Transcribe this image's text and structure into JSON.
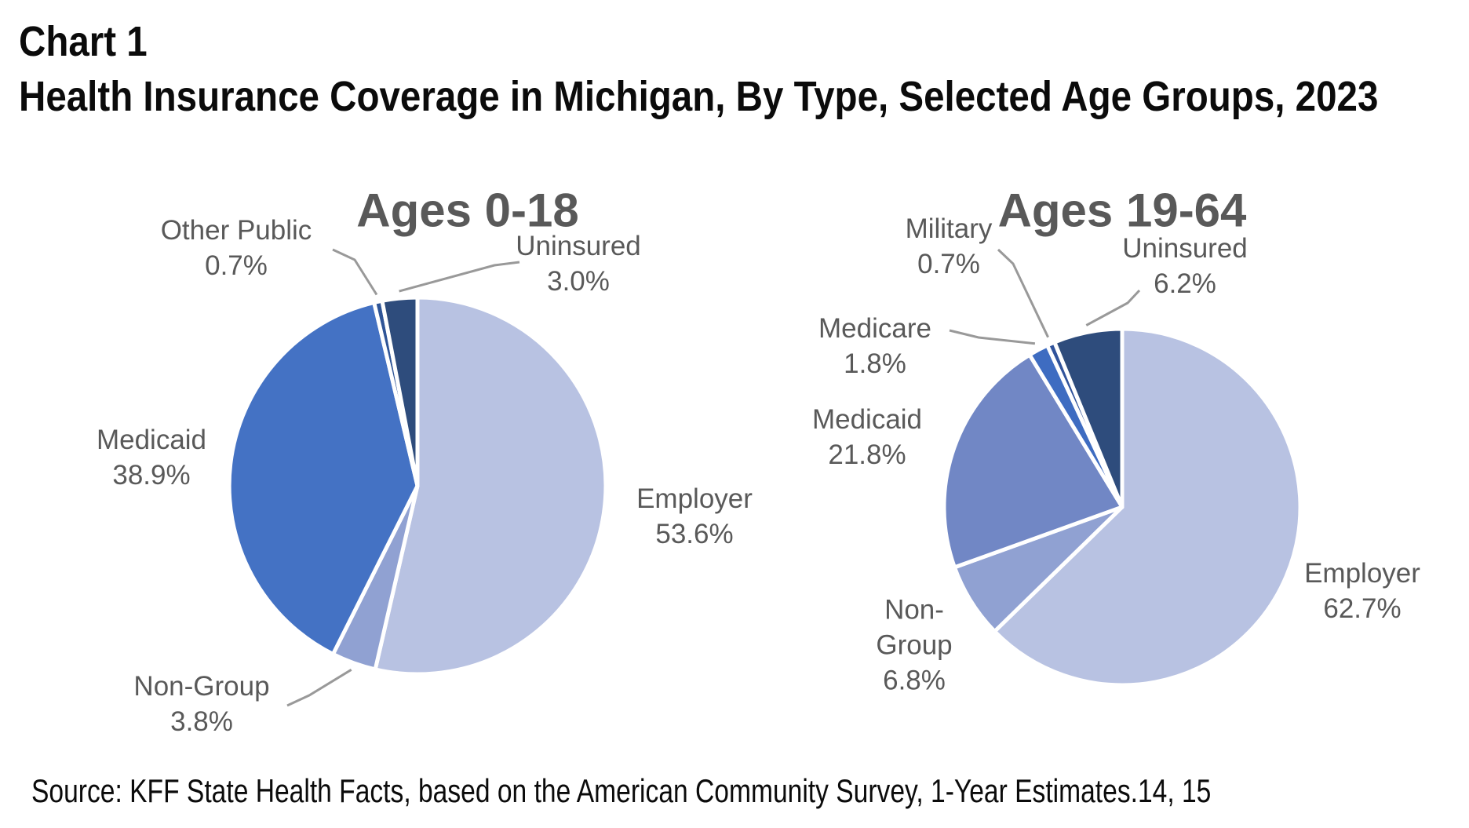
{
  "page": {
    "title_line1": "Chart 1",
    "title_line2": "Health Insurance Coverage in Michigan, By Type, Selected Age Groups, 2023",
    "source": "Source: KFF State Health Facts, based on the American Community Survey, 1-Year Estimates.14, 15"
  },
  "colors": {
    "employer": "#B8C2E2",
    "non_group": "#90A1D2",
    "medicaid_bright": "#4472C4",
    "medicaid_muted": "#7187C5",
    "medicare": "#3E6CC1",
    "military": "#30539B",
    "other_public": "#2F5597",
    "uninsured": "#2E4C7C",
    "label_text": "#595959",
    "leader_line": "#999999",
    "title_text": "#0b0b0b"
  },
  "chart_data": [
    {
      "type": "pie",
      "title": "Ages 0-18",
      "start_angle_deg": 0,
      "direction": "clockwise",
      "slices": [
        {
          "label": "Employer",
          "value": 53.6,
          "color_key": "employer"
        },
        {
          "label": "Non-Group",
          "value": 3.8,
          "color_key": "non_group"
        },
        {
          "label": "Medicaid",
          "value": 38.9,
          "color_key": "medicaid_bright"
        },
        {
          "label": "Other Public",
          "value": 0.7,
          "color_key": "other_public"
        },
        {
          "label": "Uninsured",
          "value": 3.0,
          "color_key": "uninsured"
        }
      ]
    },
    {
      "type": "pie",
      "title": "Ages 19-64",
      "start_angle_deg": 0,
      "direction": "clockwise",
      "slices": [
        {
          "label": "Employer",
          "value": 62.7,
          "color_key": "employer"
        },
        {
          "label": "Non-Group",
          "value": 6.8,
          "color_key": "non_group"
        },
        {
          "label": "Medicaid",
          "value": 21.8,
          "color_key": "medicaid_muted"
        },
        {
          "label": "Medicare",
          "value": 1.8,
          "color_key": "medicare"
        },
        {
          "label": "Military",
          "value": 0.7,
          "color_key": "military"
        },
        {
          "label": "Uninsured",
          "value": 6.2,
          "color_key": "uninsured"
        }
      ]
    }
  ]
}
